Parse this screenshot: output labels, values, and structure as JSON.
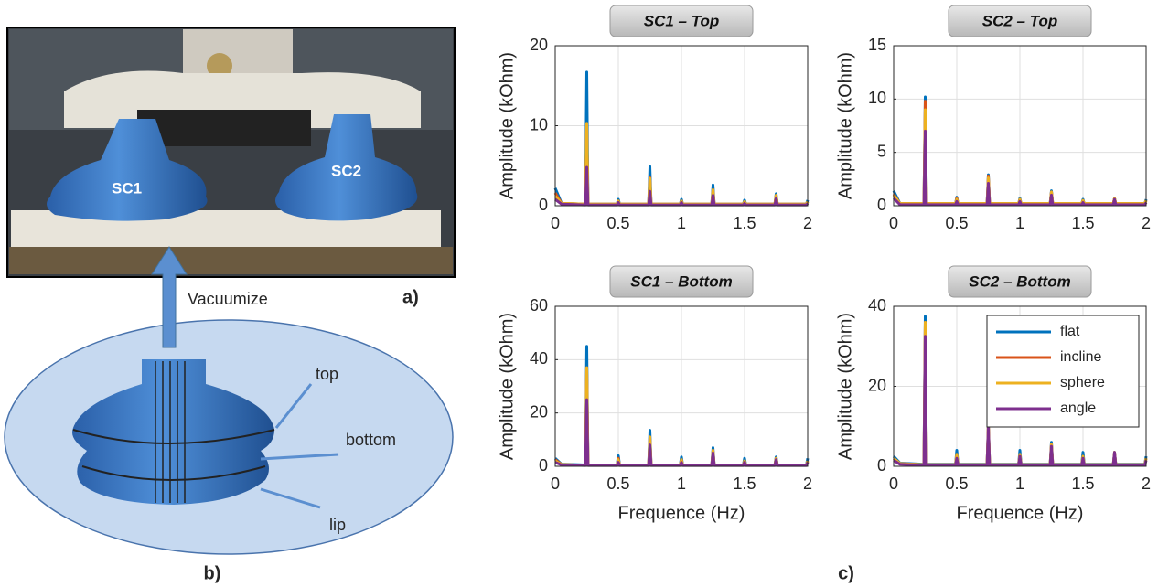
{
  "figure": {
    "sc1": "SC1",
    "sc2": "SC2",
    "arrow_label": "Vacuumize",
    "panel_a": "a)",
    "panel_b": "b)",
    "panel_c": "c)",
    "parts": [
      "top",
      "bottom",
      "lip"
    ]
  },
  "chart_data": [
    {
      "type": "line",
      "title": "SC1 – Top",
      "ylabel": "Amplitude (kOhm)",
      "grid": true,
      "x": [
        0,
        0.05,
        0.24,
        0.25,
        0.26,
        0.49,
        0.5,
        0.51,
        0.74,
        0.75,
        0.76,
        0.99,
        1,
        1.01,
        1.24,
        1.25,
        1.26,
        1.49,
        1.5,
        1.51,
        1.74,
        1.75,
        1.76,
        1.99,
        2
      ],
      "xlim": [
        0,
        2
      ],
      "xticks": [
        0,
        0.5,
        1,
        1.5,
        2
      ],
      "ylim": [
        0,
        20
      ],
      "yticks": [
        0,
        10,
        20
      ],
      "series": [
        {
          "color": "#0072bd",
          "values": [
            2.2,
            0.3,
            0.2,
            16.7,
            0.2,
            0.2,
            0.8,
            0.2,
            0.2,
            4.9,
            0.2,
            0.2,
            0.8,
            0.2,
            0.2,
            2.6,
            0.2,
            0.2,
            0.7,
            0.2,
            0.2,
            1.5,
            0.2,
            0.2,
            0.7
          ]
        },
        {
          "color": "#d95319",
          "values": [
            1.6,
            0.3,
            0.2,
            10.3,
            0.2,
            0.2,
            0.6,
            0.2,
            0.2,
            3.5,
            0.2,
            0.2,
            0.6,
            0.2,
            0.2,
            2.0,
            0.2,
            0.2,
            0.5,
            0.2,
            0.2,
            1.3,
            0.2,
            0.2,
            0.5
          ]
        },
        {
          "color": "#edb120",
          "values": [
            1.2,
            0.3,
            0.2,
            10.3,
            0.2,
            0.2,
            0.6,
            0.2,
            0.2,
            3.4,
            0.2,
            0.2,
            0.6,
            0.2,
            0.2,
            2.0,
            0.2,
            0.2,
            0.5,
            0.2,
            0.2,
            1.3,
            0.2,
            0.2,
            0.5
          ]
        },
        {
          "color": "#7e2f8e",
          "values": [
            0.8,
            0.2,
            0.1,
            4.8,
            0.1,
            0.1,
            0.4,
            0.1,
            0.1,
            1.8,
            0.1,
            0.1,
            0.4,
            0.1,
            0.1,
            1.3,
            0.1,
            0.1,
            0.3,
            0.1,
            0.1,
            0.9,
            0.1,
            0.1,
            0.3
          ]
        }
      ]
    },
    {
      "type": "line",
      "title": "SC2 – Top",
      "ylabel": "Amplitude (kOhm)",
      "grid": true,
      "x": [
        0,
        0.05,
        0.24,
        0.25,
        0.26,
        0.49,
        0.5,
        0.51,
        0.74,
        0.75,
        0.76,
        0.99,
        1,
        1.01,
        1.24,
        1.25,
        1.26,
        1.49,
        1.5,
        1.51,
        1.74,
        1.75,
        1.76,
        1.99,
        2
      ],
      "xlim": [
        0,
        2
      ],
      "xticks": [
        0,
        0.5,
        1,
        1.5,
        2
      ],
      "ylim": [
        0,
        15
      ],
      "yticks": [
        0,
        5,
        10,
        15
      ],
      "series": [
        {
          "color": "#0072bd",
          "values": [
            1.4,
            0.2,
            0.2,
            10.2,
            0.2,
            0.2,
            0.8,
            0.2,
            0.2,
            2.9,
            0.2,
            0.2,
            0.7,
            0.2,
            0.2,
            1.4,
            0.2,
            0.2,
            0.6,
            0.2,
            0.2,
            0.7,
            0.2,
            0.2,
            0.6
          ]
        },
        {
          "color": "#d95319",
          "values": [
            1.1,
            0.2,
            0.2,
            9.8,
            0.2,
            0.2,
            0.7,
            0.2,
            0.2,
            2.8,
            0.2,
            0.2,
            0.6,
            0.2,
            0.2,
            1.3,
            0.2,
            0.2,
            0.5,
            0.2,
            0.2,
            0.7,
            0.2,
            0.2,
            0.5
          ]
        },
        {
          "color": "#edb120",
          "values": [
            1.0,
            0.2,
            0.2,
            9.0,
            0.2,
            0.2,
            0.6,
            0.2,
            0.2,
            2.6,
            0.2,
            0.2,
            0.6,
            0.2,
            0.2,
            1.3,
            0.2,
            0.2,
            0.5,
            0.2,
            0.2,
            0.7,
            0.2,
            0.2,
            0.5
          ]
        },
        {
          "color": "#7e2f8e",
          "values": [
            0.7,
            0.1,
            0.1,
            7.0,
            0.1,
            0.1,
            0.4,
            0.1,
            0.1,
            2.1,
            0.1,
            0.1,
            0.4,
            0.1,
            0.1,
            1.0,
            0.1,
            0.1,
            0.3,
            0.1,
            0.1,
            0.6,
            0.1,
            0.1,
            0.3
          ]
        }
      ]
    },
    {
      "type": "line",
      "title": "SC1 – Bottom",
      "ylabel": "Amplitude (kOhm)",
      "xlabel": "Frequence (Hz)",
      "grid": true,
      "x": [
        0,
        0.05,
        0.24,
        0.25,
        0.26,
        0.49,
        0.5,
        0.51,
        0.74,
        0.75,
        0.76,
        0.99,
        1,
        1.01,
        1.24,
        1.25,
        1.26,
        1.49,
        1.5,
        1.51,
        1.74,
        1.75,
        1.76,
        1.99,
        2
      ],
      "xlim": [
        0,
        2
      ],
      "xticks": [
        0,
        0.5,
        1,
        1.5,
        2
      ],
      "ylim": [
        0,
        60
      ],
      "yticks": [
        0,
        20,
        40,
        60
      ],
      "series": [
        {
          "color": "#0072bd",
          "values": [
            3,
            0.8,
            0.5,
            45,
            0.5,
            0.5,
            4,
            0.5,
            0.5,
            13.5,
            0.5,
            0.5,
            3.5,
            0.5,
            0.5,
            7,
            0.5,
            0.5,
            3,
            0.5,
            0.5,
            3.5,
            0.5,
            0.5,
            3
          ]
        },
        {
          "color": "#d95319",
          "values": [
            2.5,
            0.7,
            0.4,
            37,
            0.4,
            0.4,
            3,
            0.4,
            0.4,
            11,
            0.4,
            0.4,
            2.5,
            0.4,
            0.4,
            6,
            0.4,
            0.4,
            2,
            0.4,
            0.4,
            3,
            0.4,
            0.4,
            2
          ]
        },
        {
          "color": "#edb120",
          "values": [
            2,
            0.7,
            0.4,
            37,
            0.4,
            0.4,
            2.5,
            0.4,
            0.4,
            11,
            0.4,
            0.4,
            2.5,
            0.4,
            0.4,
            6,
            0.4,
            0.4,
            2,
            0.4,
            0.4,
            3,
            0.4,
            0.4,
            2
          ]
        },
        {
          "color": "#7e2f8e",
          "values": [
            1.5,
            0.5,
            0.3,
            25,
            0.3,
            0.3,
            1.5,
            0.3,
            0.3,
            8,
            0.3,
            0.3,
            1.5,
            0.3,
            0.3,
            5,
            0.3,
            0.3,
            1.5,
            0.3,
            0.3,
            2.5,
            0.3,
            0.3,
            1.5
          ]
        }
      ]
    },
    {
      "type": "line",
      "title": "SC2 – Bottom",
      "ylabel": "Amplitude (kOhm)",
      "xlabel": "Frequence (Hz)",
      "grid": true,
      "legend": "upper right",
      "x": [
        0,
        0.05,
        0.24,
        0.25,
        0.26,
        0.49,
        0.5,
        0.51,
        0.74,
        0.75,
        0.76,
        0.99,
        1,
        1.01,
        1.24,
        1.25,
        1.26,
        1.49,
        1.5,
        1.51,
        1.74,
        1.75,
        1.76,
        1.99,
        2
      ],
      "xlim": [
        0,
        2
      ],
      "xticks": [
        0,
        0.5,
        1,
        1.5,
        2
      ],
      "ylim": [
        0,
        40
      ],
      "yticks": [
        0,
        20,
        40
      ],
      "series": [
        {
          "name": "flat",
          "color": "#0072bd",
          "values": [
            2.5,
            0.8,
            0.5,
            37.5,
            0.5,
            0.5,
            4,
            0.5,
            0.5,
            10.5,
            0.5,
            0.5,
            4,
            0.5,
            0.5,
            6,
            0.5,
            0.5,
            3.5,
            0.5,
            0.5,
            3.5,
            0.5,
            0.5,
            2.5
          ]
        },
        {
          "name": "incline",
          "color": "#d95319",
          "values": [
            2,
            0.7,
            0.4,
            36,
            0.4,
            0.4,
            3,
            0.4,
            0.4,
            10.5,
            0.4,
            0.4,
            3,
            0.4,
            0.4,
            5.5,
            0.4,
            0.4,
            2.5,
            0.4,
            0.4,
            3.5,
            0.4,
            0.4,
            2
          ]
        },
        {
          "name": "sphere",
          "color": "#edb120",
          "values": [
            2,
            0.7,
            0.4,
            36,
            0.4,
            0.4,
            3,
            0.4,
            0.4,
            10.5,
            0.4,
            0.4,
            3,
            0.4,
            0.4,
            5.5,
            0.4,
            0.4,
            2.5,
            0.4,
            0.4,
            3.5,
            0.4,
            0.4,
            2
          ]
        },
        {
          "name": "angle",
          "color": "#7e2f8e",
          "values": [
            1.5,
            0.5,
            0.3,
            32.5,
            0.3,
            0.3,
            2,
            0.3,
            0.3,
            10,
            0.3,
            0.3,
            2.5,
            0.3,
            0.3,
            5,
            0.3,
            0.3,
            2,
            0.3,
            0.3,
            3.5,
            0.3,
            0.3,
            1.5
          ]
        }
      ]
    }
  ]
}
